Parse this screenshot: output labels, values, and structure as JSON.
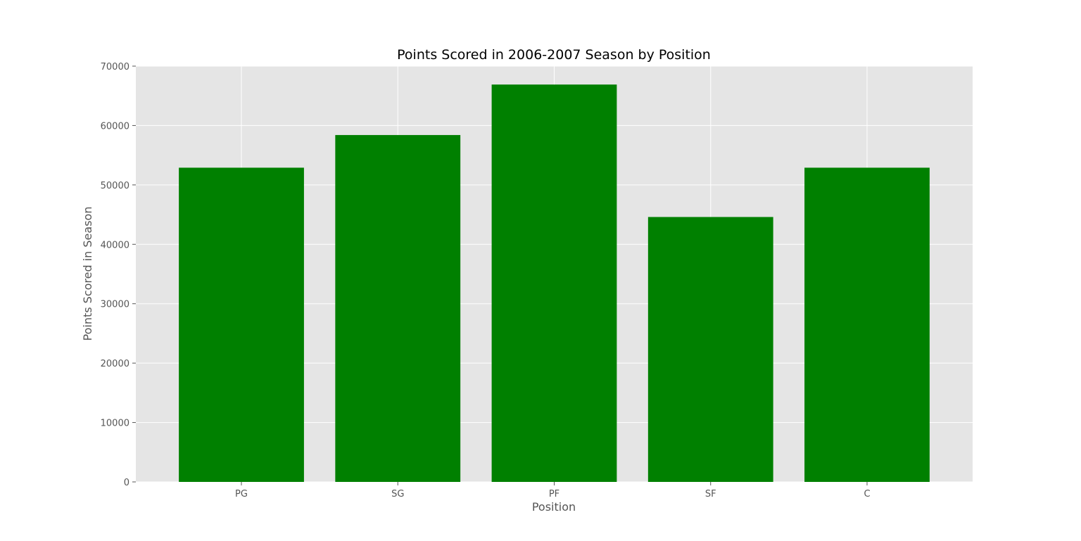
{
  "chart_data": {
    "type": "bar",
    "title": "Points Scored in 2006-2007 Season by Position",
    "xlabel": "Position",
    "ylabel": "Points Scored in Season",
    "categories": [
      "PG",
      "SG",
      "PF",
      "SF",
      "C"
    ],
    "values": [
      52900,
      58400,
      66900,
      44600,
      52900
    ],
    "ylim": [
      0,
      70000
    ],
    "yticks": [
      0,
      10000,
      20000,
      30000,
      40000,
      50000,
      60000,
      70000
    ],
    "grid": true,
    "legend": "none",
    "colors": {
      "bar": "#008000",
      "plot_background": "#e5e5e5",
      "grid": "#ffffff",
      "text": "#555555",
      "title": "#000000"
    }
  }
}
